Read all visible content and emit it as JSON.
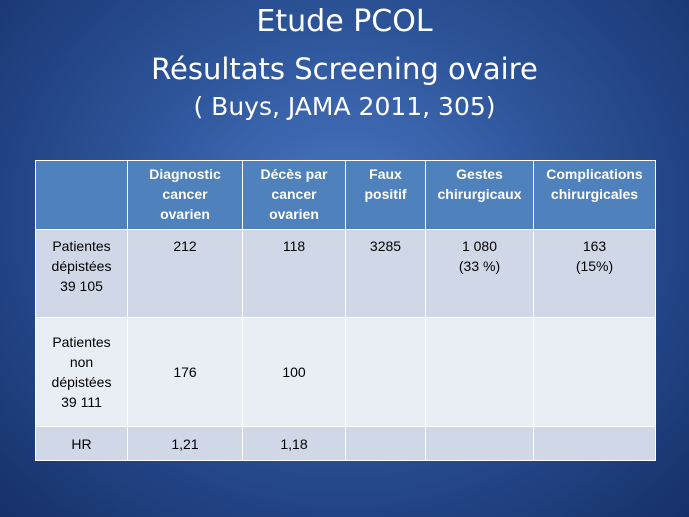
{
  "header": {
    "title_lines": [
      "Etude PCOL",
      "Résultats Screening ovaire",
      "( Buys, JAMA 2011, 305)"
    ]
  },
  "table": {
    "columns": [
      "",
      "Diagnostic\ncancer\novarien",
      "Décès par\ncancer\novarien",
      "Faux\npositif",
      "Gestes\nchirurgicaux",
      "Complications\nchirurgicales"
    ],
    "rows": [
      [
        "Patientes\ndépistées\n39 105",
        "212",
        "118",
        "3285",
        "1 080\n(33 %)",
        "163\n(15%)"
      ],
      [
        "Patientes\nnon\ndépistées\n39 111",
        "176",
        "100",
        "",
        "",
        ""
      ],
      [
        "HR",
        "1,21",
        "1,18",
        "",
        "",
        ""
      ]
    ]
  }
}
